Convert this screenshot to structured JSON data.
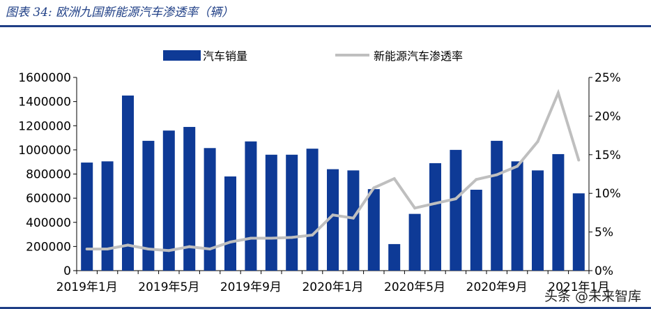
{
  "header": {
    "title": "图表 34:  欧洲九国新能源汽车渗透率（辆）"
  },
  "watermark": "头条 @未来智库",
  "colors": {
    "bar": "#0e3a96",
    "line": "#bfbfbf",
    "title": "#1f3f86"
  },
  "chart_data": {
    "type": "bar",
    "title": "",
    "legend": {
      "placement": "top",
      "entries": [
        "汽车销量",
        "新能源汽车渗透率"
      ]
    },
    "categories": [
      "2019-01",
      "2019-02",
      "2019-03",
      "2019-04",
      "2019-05",
      "2019-06",
      "2019-07",
      "2019-08",
      "2019-09",
      "2019-10",
      "2019-11",
      "2019-12",
      "2020-01",
      "2020-02",
      "2020-03",
      "2020-04",
      "2020-05",
      "2020-06",
      "2020-07",
      "2020-08",
      "2020-09",
      "2020-10",
      "2020-11",
      "2020-12",
      "2021-01"
    ],
    "x_tick_labels": [
      "2019年1月",
      "2019年5月",
      "2019年9月",
      "2020年1月",
      "2020年5月",
      "2020年9月",
      "2021年1月"
    ],
    "series": [
      {
        "name": "汽车销量",
        "type": "bar",
        "axis": "left",
        "values": [
          895000,
          905000,
          1450000,
          1075000,
          1160000,
          1190000,
          1015000,
          780000,
          1070000,
          960000,
          960000,
          1010000,
          840000,
          830000,
          675000,
          220000,
          470000,
          890000,
          1000000,
          670000,
          1075000,
          905000,
          830000,
          965000,
          640000
        ]
      },
      {
        "name": "新能源汽车渗透率",
        "type": "line",
        "axis": "right",
        "values": [
          0.028,
          0.028,
          0.033,
          0.028,
          0.026,
          0.031,
          0.028,
          0.037,
          0.042,
          0.042,
          0.043,
          0.046,
          0.072,
          0.068,
          0.107,
          0.119,
          0.081,
          0.087,
          0.093,
          0.118,
          0.124,
          0.135,
          0.167,
          0.23,
          0.143
        ]
      }
    ],
    "y_left": {
      "range": [
        0,
        1600000
      ],
      "tick_labels": [
        "0",
        "200000",
        "400000",
        "600000",
        "800000",
        "1000000",
        "1200000",
        "1400000",
        "1600000"
      ]
    },
    "y_right": {
      "range": [
        0,
        0.25
      ],
      "tick_labels": [
        "0%",
        "5%",
        "10%",
        "15%",
        "20%",
        "25%"
      ]
    },
    "grid": false
  }
}
